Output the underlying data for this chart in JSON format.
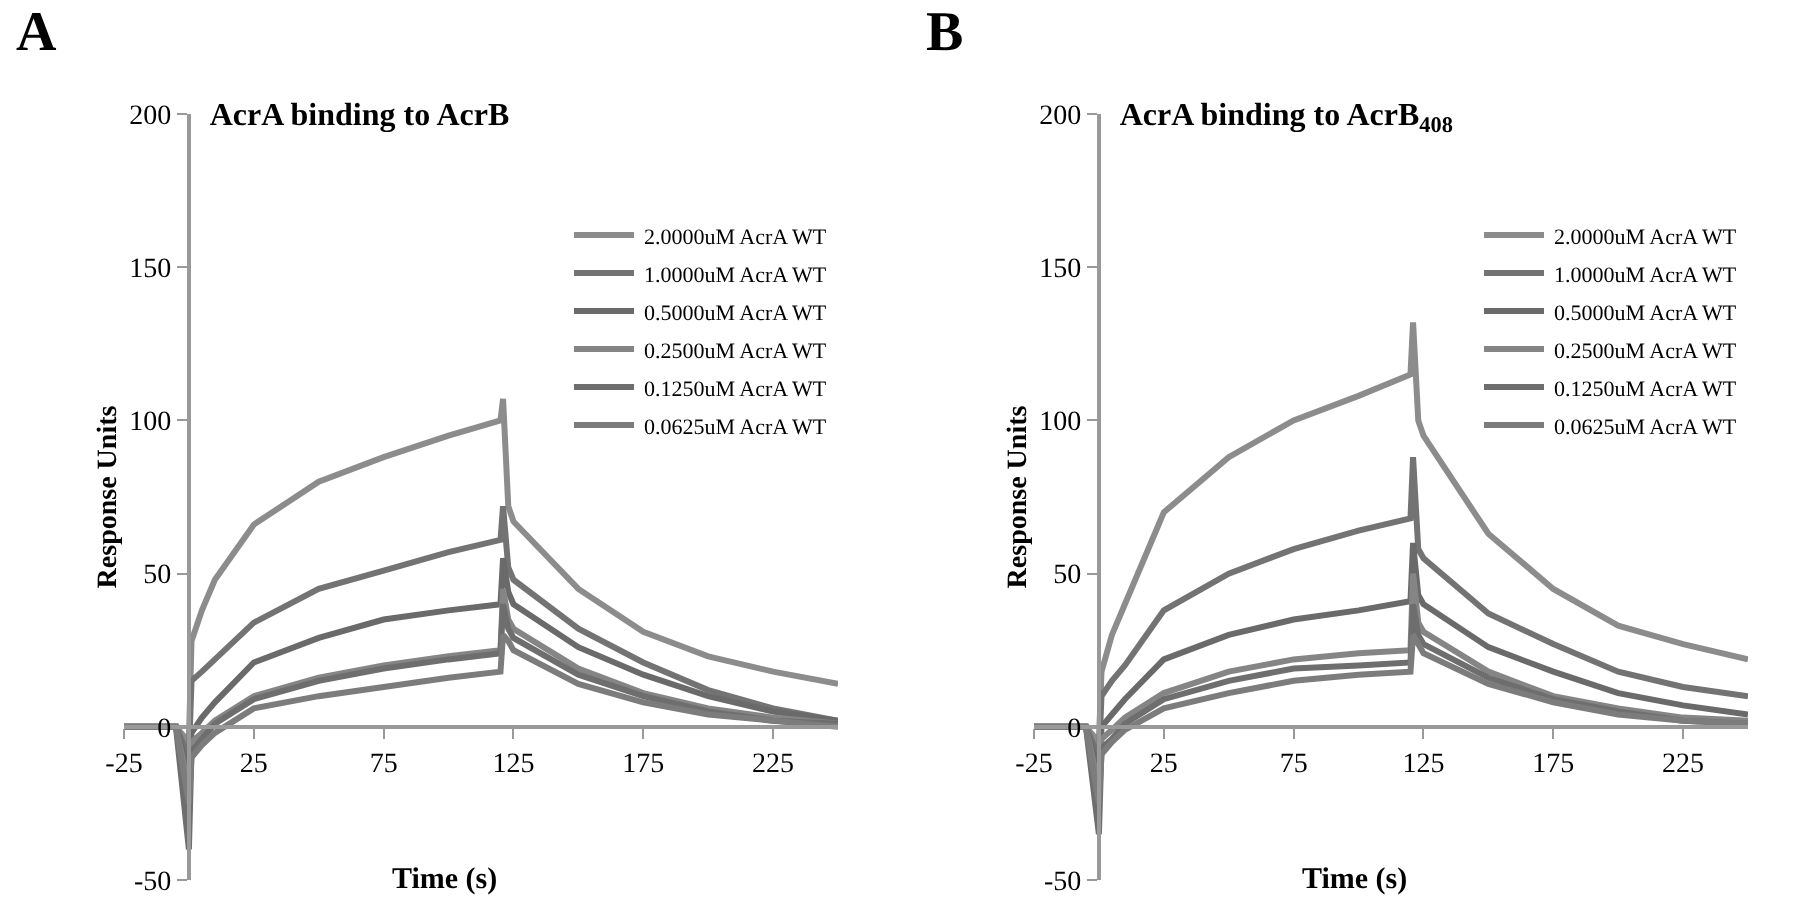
{
  "chart_data": [
    {
      "type": "line",
      "annotations": [
        "A"
      ],
      "title": "AcrA binding to AcrB",
      "xlabel": "Time (s)",
      "ylabel": "Response Units",
      "xlim": [
        -25,
        250
      ],
      "xticks": [
        -25,
        25,
        75,
        125,
        175,
        225
      ],
      "ylim": [
        -50,
        200
      ],
      "yticks": [
        -50,
        0,
        50,
        100,
        150,
        200
      ],
      "grid": false,
      "legend": "top right",
      "marker": "none",
      "line_style": "solid",
      "x": [
        -25,
        -5,
        0,
        1,
        5,
        10,
        25,
        50,
        75,
        100,
        120,
        121,
        123,
        125,
        150,
        175,
        200,
        225,
        250
      ],
      "series": [
        {
          "name": "2.0000uM AcrA WT",
          "color": "#8c8c8c",
          "values": [
            0,
            0,
            -5,
            28,
            38,
            48,
            66,
            80,
            88,
            95,
            100,
            107,
            72,
            67,
            45,
            31,
            23,
            18,
            14
          ]
        },
        {
          "name": "1.0000uM AcrA WT",
          "color": "#737373",
          "values": [
            0,
            0,
            -10,
            15,
            18,
            22,
            34,
            45,
            51,
            57,
            61,
            72,
            52,
            48,
            32,
            21,
            12,
            6,
            2
          ]
        },
        {
          "name": "0.5000uM AcrA WT",
          "color": "#6a6a6a",
          "values": [
            0,
            0,
            -15,
            -2,
            3,
            8,
            21,
            29,
            35,
            38,
            40,
            55,
            44,
            40,
            26,
            17,
            10,
            5,
            2
          ]
        },
        {
          "name": "0.2500uM AcrA WT",
          "color": "#858585",
          "values": [
            0,
            0,
            -20,
            -5,
            -2,
            2,
            10,
            16,
            20,
            23,
            25,
            45,
            35,
            32,
            19,
            11,
            6,
            3,
            1
          ]
        },
        {
          "name": "0.1250uM AcrA WT",
          "color": "#6e6e6e",
          "values": [
            0,
            0,
            -40,
            -8,
            -4,
            1,
            9,
            15,
            19,
            22,
            24,
            40,
            32,
            29,
            17,
            10,
            5,
            2,
            1
          ]
        },
        {
          "name": "0.0625uM AcrA WT",
          "color": "#7c7c7c",
          "values": [
            0,
            0,
            -25,
            -10,
            -6,
            -2,
            6,
            10,
            13,
            16,
            18,
            30,
            28,
            25,
            14,
            8,
            4,
            2,
            0
          ]
        }
      ]
    },
    {
      "type": "line",
      "annotations": [
        "B"
      ],
      "title": "AcrA binding to AcrB$_{408}$",
      "xlabel": "Time (s)",
      "ylabel": "Response Units",
      "xlim": [
        -25,
        250
      ],
      "xticks": [
        -25,
        25,
        75,
        125,
        175,
        225
      ],
      "ylim": [
        -50,
        200
      ],
      "yticks": [
        -50,
        0,
        50,
        100,
        150,
        200
      ],
      "grid": false,
      "legend": "top right",
      "marker": "none",
      "line_style": "solid",
      "x": [
        -25,
        -5,
        0,
        1,
        5,
        10,
        25,
        50,
        75,
        100,
        120,
        121,
        123,
        125,
        150,
        175,
        200,
        225,
        250
      ],
      "series": [
        {
          "name": "2.0000uM AcrA WT",
          "color": "#8c8c8c",
          "values": [
            0,
            0,
            -5,
            18,
            30,
            40,
            70,
            88,
            100,
            108,
            115,
            132,
            100,
            95,
            63,
            45,
            33,
            27,
            22
          ]
        },
        {
          "name": "1.0000uM AcrA WT",
          "color": "#737373",
          "values": [
            0,
            0,
            -10,
            10,
            15,
            20,
            38,
            50,
            58,
            64,
            68,
            88,
            58,
            55,
            37,
            27,
            18,
            13,
            10
          ]
        },
        {
          "name": "0.5000uM AcrA WT",
          "color": "#6a6a6a",
          "values": [
            0,
            0,
            -15,
            0,
            4,
            9,
            22,
            30,
            35,
            38,
            41,
            60,
            43,
            40,
            26,
            18,
            11,
            7,
            4
          ]
        },
        {
          "name": "0.2500uM AcrA WT",
          "color": "#858585",
          "values": [
            0,
            0,
            -20,
            -4,
            -1,
            3,
            11,
            18,
            22,
            24,
            25,
            50,
            34,
            31,
            18,
            10,
            6,
            3,
            2
          ]
        },
        {
          "name": "0.1250uM AcrA WT",
          "color": "#6e6e6e",
          "values": [
            0,
            0,
            -35,
            -7,
            -4,
            1,
            9,
            15,
            19,
            20,
            21,
            40,
            30,
            27,
            16,
            9,
            5,
            2,
            1
          ]
        },
        {
          "name": "0.0625uM AcrA WT",
          "color": "#7c7c7c",
          "values": [
            0,
            0,
            -25,
            -9,
            -5,
            -1,
            6,
            11,
            15,
            17,
            18,
            30,
            27,
            24,
            14,
            8,
            4,
            2,
            1
          ]
        }
      ]
    }
  ]
}
